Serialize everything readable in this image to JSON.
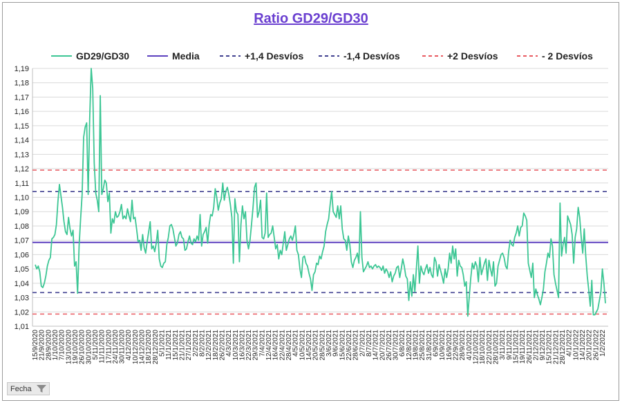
{
  "chart_data": {
    "type": "line",
    "title": "Ratio GD29/GD30",
    "ylim": [
      1.01,
      1.19
    ],
    "yticks": [
      "1,01",
      "1,02",
      "1,03",
      "1,04",
      "1,05",
      "1,06",
      "1,07",
      "1,08",
      "1,09",
      "1,10",
      "1,11",
      "1,12",
      "1,13",
      "1,14",
      "1,15",
      "1,16",
      "1,17",
      "1,18",
      "1,19"
    ],
    "xticks": [
      "15/9/2020",
      "21/9/2020",
      "28/9/2020",
      "1/10/2020",
      "7/10/2020",
      "13/10/2020",
      "19/10/2020",
      "26/10/2020",
      "30/10/2020",
      "5/11/2020",
      "11/11/2020",
      "17/11/2020",
      "24/11/2020",
      "30/11/2020",
      "4/12/2020",
      "10/12/2020",
      "14/12/2020",
      "18/12/2020",
      "28/12/2020",
      "5/1/2021",
      "11/1/2021",
      "15/1/2021",
      "21/1/2021",
      "27/1/2021",
      "2/2/2021",
      "8/2/2021",
      "12/2/2021",
      "18/2/2021",
      "26/2/2021",
      "4/3/2021",
      "10/3/2021",
      "16/3/2021",
      "22/3/2021",
      "29/3/2021",
      "7/4/2021",
      "12/4/2021",
      "16/4/2021",
      "22/4/2021",
      "28/4/2021",
      "4/5/2021",
      "10/5/2021",
      "14/5/2021",
      "20/5/2021",
      "28/5/2021",
      "3/6/2021",
      "9/6/2021",
      "15/6/2021",
      "22/6/2021",
      "28/6/2021",
      "2/7/2021",
      "8/7/2021",
      "14/7/2021",
      "20/7/2021",
      "26/7/2021",
      "30/7/2021",
      "6/8/2021",
      "12/8/2021",
      "19/8/2021",
      "25/8/2021",
      "31/8/2021",
      "6/9/2021",
      "10/9/2021",
      "16/9/2021",
      "22/9/2021",
      "28/9/2021",
      "4/10/2021",
      "12/10/2021",
      "18/10/2021",
      "22/10/2021",
      "28/10/2021",
      "3/11/2021",
      "9/11/2021",
      "15/11/2021",
      "19/11/2021",
      "26/11/2021",
      "2/12/2021",
      "9/12/2021",
      "15/12/2021",
      "21/12/2021",
      "28/12/2021",
      "4/1/2022",
      "10/1/2022",
      "14/1/2022",
      "20/1/2022",
      "26/1/2022",
      "1/2/2022"
    ],
    "series": [
      {
        "name": "GD29/GD30",
        "color": "#3cc694",
        "values": [
          1.053,
          1.05,
          1.052,
          1.048,
          1.038,
          1.037,
          1.04,
          1.045,
          1.052,
          1.056,
          1.058,
          1.071,
          1.072,
          1.074,
          1.081,
          1.097,
          1.109,
          1.101,
          1.093,
          1.083,
          1.076,
          1.074,
          1.086,
          1.078,
          1.073,
          1.077,
          1.052,
          1.055,
          1.033,
          1.066,
          1.085,
          1.102,
          1.142,
          1.149,
          1.152,
          1.102,
          1.155,
          1.19,
          1.176,
          1.124,
          1.103,
          1.098,
          1.09,
          1.171,
          1.102,
          1.106,
          1.112,
          1.11,
          1.097,
          1.103,
          1.075,
          1.085,
          1.082,
          1.09,
          1.086,
          1.087,
          1.09,
          1.095,
          1.085,
          1.087,
          1.085,
          1.092,
          1.087,
          1.083,
          1.098,
          1.085,
          1.086,
          1.078,
          1.069,
          1.07,
          1.063,
          1.074,
          1.065,
          1.061,
          1.069,
          1.076,
          1.083,
          1.064,
          1.066,
          1.062,
          1.068,
          1.077,
          1.057,
          1.052,
          1.051,
          1.054,
          1.055,
          1.067,
          1.072,
          1.08,
          1.081,
          1.078,
          1.072,
          1.066,
          1.068,
          1.074,
          1.076,
          1.072,
          1.071,
          1.063,
          1.064,
          1.069,
          1.073,
          1.068,
          1.067,
          1.071,
          1.069,
          1.073,
          1.07,
          1.088,
          1.066,
          1.074,
          1.076,
          1.079,
          1.068,
          1.081,
          1.088,
          1.087,
          1.093,
          1.106,
          1.1,
          1.091,
          1.096,
          1.099,
          1.11,
          1.098,
          1.104,
          1.107,
          1.102,
          1.095,
          1.086,
          1.054,
          1.099,
          1.09,
          1.088,
          1.055,
          1.081,
          1.094,
          1.085,
          1.09,
          1.07,
          1.064,
          1.07,
          1.081,
          1.093,
          1.107,
          1.11,
          1.086,
          1.09,
          1.098,
          1.072,
          1.071,
          1.075,
          1.103,
          1.072,
          1.074,
          1.075,
          1.08,
          1.072,
          1.064,
          1.067,
          1.057,
          1.063,
          1.06,
          1.068,
          1.076,
          1.063,
          1.067,
          1.071,
          1.073,
          1.07,
          1.074,
          1.08,
          1.063,
          1.06,
          1.05,
          1.044,
          1.058,
          1.059,
          1.054,
          1.052,
          1.047,
          1.043,
          1.035,
          1.046,
          1.048,
          1.054,
          1.053,
          1.059,
          1.057,
          1.062,
          1.066,
          1.076,
          1.081,
          1.085,
          1.095,
          1.104,
          1.09,
          1.088,
          1.086,
          1.094,
          1.085,
          1.094,
          1.078,
          1.071,
          1.07,
          1.063,
          1.073,
          1.067,
          1.055,
          1.051,
          1.056,
          1.058,
          1.061,
          1.054,
          1.09,
          1.058,
          1.048,
          1.05,
          1.052,
          1.055,
          1.051,
          1.052,
          1.05,
          1.052,
          1.053,
          1.051,
          1.052,
          1.051,
          1.049,
          1.052,
          1.047,
          1.05,
          1.048,
          1.044,
          1.048,
          1.041,
          1.045,
          1.047,
          1.051,
          1.052,
          1.044,
          1.05,
          1.057,
          1.052,
          1.045,
          1.043,
          1.028,
          1.041,
          1.031,
          1.046,
          1.034,
          1.05,
          1.066,
          1.04,
          1.052,
          1.048,
          1.046,
          1.05,
          1.053,
          1.047,
          1.051,
          1.046,
          1.044,
          1.058,
          1.055,
          1.045,
          1.053,
          1.049,
          1.045,
          1.04,
          1.05,
          1.044,
          1.05,
          1.061,
          1.054,
          1.066,
          1.057,
          1.064,
          1.045,
          1.056,
          1.052,
          1.051,
          1.046,
          1.038,
          1.041,
          1.017,
          1.031,
          1.044,
          1.054,
          1.05,
          1.055,
          1.052,
          1.041,
          1.058,
          1.046,
          1.05,
          1.054,
          1.057,
          1.042,
          1.056,
          1.05,
          1.045,
          1.055,
          1.038,
          1.04,
          1.052,
          1.056,
          1.06,
          1.061,
          1.058,
          1.052,
          1.05,
          1.062,
          1.07,
          1.067,
          1.066,
          1.072,
          1.075,
          1.08,
          1.073,
          1.079,
          1.08,
          1.089,
          1.087,
          1.084,
          1.054,
          1.049,
          1.044,
          1.054,
          1.03,
          1.036,
          1.032,
          1.029,
          1.025,
          1.03,
          1.036,
          1.048,
          1.054,
          1.061,
          1.058,
          1.071,
          1.066,
          1.046,
          1.04,
          1.035,
          1.03,
          1.096,
          1.059,
          1.067,
          1.072,
          1.061,
          1.087,
          1.084,
          1.081,
          1.074,
          1.054,
          1.072,
          1.078,
          1.093,
          1.086,
          1.072,
          1.061,
          1.078,
          1.059,
          1.045,
          1.035,
          1.024,
          1.042,
          1.018,
          1.018,
          1.02,
          1.022,
          1.028,
          1.034,
          1.05,
          1.04,
          1.026
        ]
      },
      {
        "name": "Media",
        "color": "#5b3fbf",
        "value": 1.0685
      },
      {
        "name": "+1,4 Desvíos",
        "color": "#3f3f8f",
        "dash": true,
        "value": 1.104
      },
      {
        "name": "-1,4 Desvíos",
        "color": "#3f3f8f",
        "dash": true,
        "value": 1.0335
      },
      {
        "name": "+2 Desvíos",
        "color": "#e8585f",
        "dash": true,
        "value": 1.119
      },
      {
        "name": "- 2 Desvíos",
        "color": "#e8585f",
        "dash": true,
        "value": 1.0185
      }
    ],
    "grid": true,
    "legend": "top"
  },
  "filter": {
    "label": "Fecha"
  }
}
